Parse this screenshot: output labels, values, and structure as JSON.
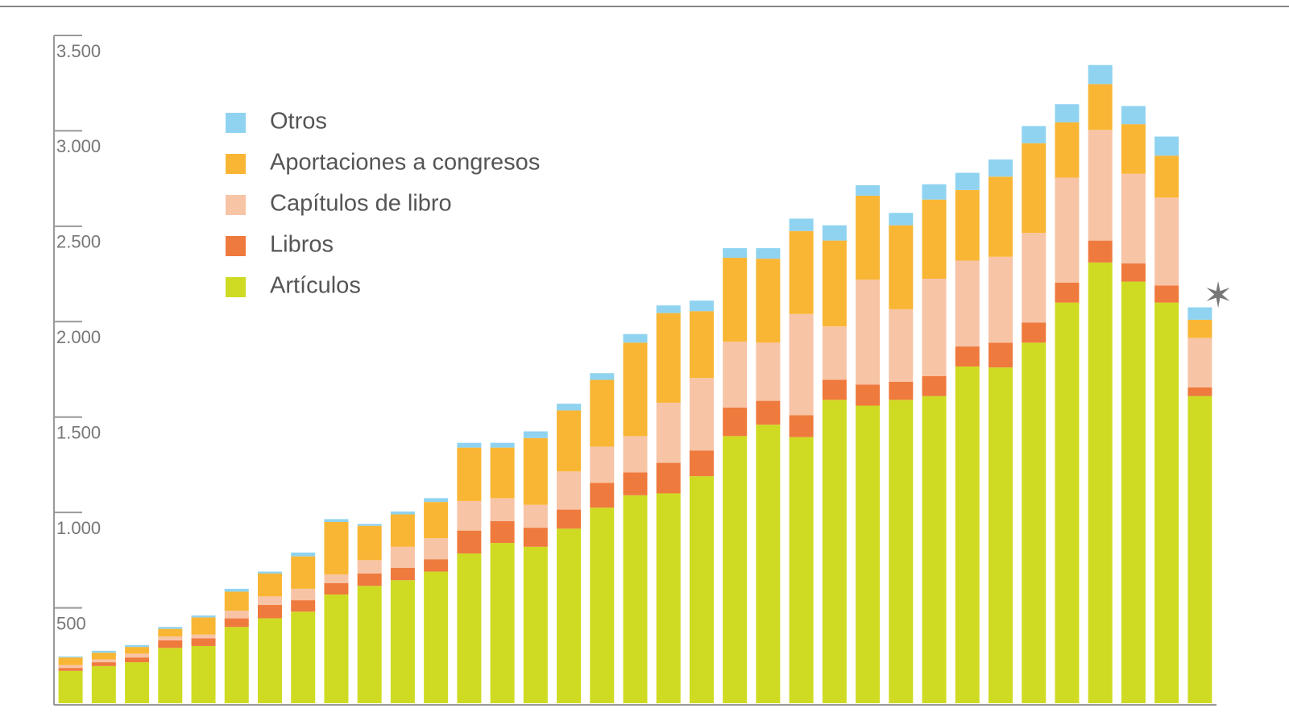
{
  "chart_data": {
    "type": "stacked_bar",
    "annotation": "✶",
    "categories": [
      null,
      null,
      null,
      null,
      null,
      null,
      null,
      null,
      null,
      null,
      null,
      null,
      null,
      null,
      null,
      null,
      null,
      null,
      null,
      null,
      null,
      null,
      null,
      null,
      null,
      null,
      null,
      null,
      null,
      null,
      null,
      null,
      null,
      null,
      null
    ],
    "series": [
      {
        "name": "Artículos",
        "color": "#cfdb22",
        "values": [
          170,
          195,
          215,
          290,
          300,
          400,
          445,
          480,
          570,
          615,
          645,
          690,
          785,
          840,
          820,
          915,
          1025,
          1090,
          1100,
          1190,
          1400,
          1460,
          1395,
          1590,
          1560,
          1590,
          1610,
          1765,
          1760,
          1890,
          2100,
          2310,
          2210,
          2100,
          1610
        ]
      },
      {
        "name": "Libros",
        "color": "#ef7a3d",
        "values": [
          15,
          20,
          25,
          40,
          40,
          45,
          70,
          60,
          60,
          65,
          65,
          65,
          120,
          115,
          100,
          100,
          130,
          120,
          160,
          135,
          150,
          125,
          115,
          105,
          110,
          95,
          105,
          105,
          130,
          105,
          105,
          115,
          95,
          90,
          45
        ]
      },
      {
        "name": "Capítulos de libro",
        "color": "#f8c4a6",
        "values": [
          15,
          15,
          20,
          20,
          20,
          40,
          45,
          60,
          45,
          70,
          110,
          110,
          155,
          120,
          120,
          200,
          190,
          190,
          315,
          380,
          345,
          305,
          530,
          280,
          550,
          380,
          510,
          450,
          450,
          470,
          550,
          580,
          470,
          460,
          260
        ]
      },
      {
        "name": "Aportaciones a congresos",
        "color": "#f9b634",
        "values": [
          40,
          35,
          35,
          40,
          90,
          100,
          120,
          170,
          275,
          180,
          170,
          190,
          280,
          265,
          350,
          320,
          350,
          490,
          470,
          350,
          440,
          440,
          435,
          450,
          440,
          440,
          415,
          370,
          420,
          470,
          290,
          240,
          260,
          220,
          95
        ]
      },
      {
        "name": "Otros",
        "color": "#8fd3f0",
        "values": [
          5,
          10,
          10,
          10,
          10,
          15,
          10,
          20,
          15,
          10,
          15,
          20,
          25,
          25,
          35,
          35,
          35,
          45,
          40,
          55,
          50,
          55,
          65,
          80,
          55,
          65,
          80,
          90,
          90,
          90,
          95,
          100,
          95,
          100,
          65
        ]
      }
    ],
    "ylim": [
      0,
      3500
    ],
    "yticks": [
      {
        "value": 500,
        "label": "500"
      },
      {
        "value": 1000,
        "label": "1.000"
      },
      {
        "value": 1500,
        "label": "1.500"
      },
      {
        "value": 2000,
        "label": "2.000"
      },
      {
        "value": 2500,
        "label": "2.500"
      },
      {
        "value": 3000,
        "label": "3.000"
      },
      {
        "value": 3500,
        "label": "3.500"
      }
    ],
    "grid": false
  }
}
